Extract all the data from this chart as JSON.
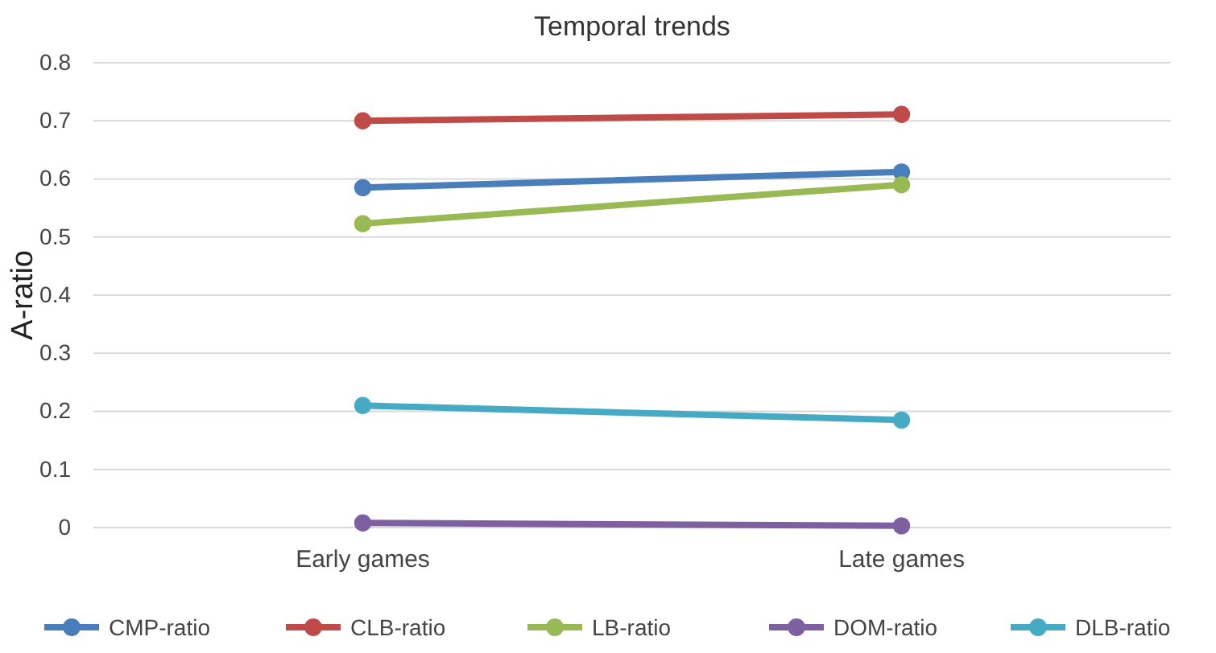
{
  "chart_data": {
    "type": "line",
    "title": "Temporal trends",
    "ylabel": "A-ratio",
    "categories": [
      "Early games",
      "Late games"
    ],
    "series": [
      {
        "name": "CMP-ratio",
        "color": "#4a7ebb",
        "values": [
          0.585,
          0.612
        ]
      },
      {
        "name": "CLB-ratio",
        "color": "#be4b48",
        "values": [
          0.7,
          0.711
        ]
      },
      {
        "name": "LB-ratio",
        "color": "#98b954",
        "values": [
          0.523,
          0.59
        ]
      },
      {
        "name": "DOM-ratio",
        "color": "#7d60a0",
        "values": [
          0.008,
          0.003
        ]
      },
      {
        "name": "DLB-ratio",
        "color": "#46aac5",
        "values": [
          0.21,
          0.185
        ]
      }
    ],
    "ylim": [
      0,
      0.8
    ],
    "yticks": [
      0,
      0.1,
      0.2,
      0.3,
      0.4,
      0.5,
      0.6,
      0.7,
      0.8
    ],
    "grid": "y",
    "legend": "bottom",
    "marker": "circle",
    "line_style": "solid"
  }
}
